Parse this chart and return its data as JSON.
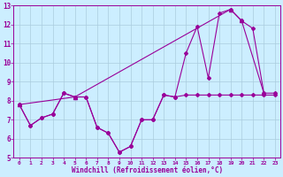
{
  "xlabel": "Windchill (Refroidissement éolien,°C)",
  "bg_color": "#cceeff",
  "grid_color": "#aaccdd",
  "line_color": "#990099",
  "xlim": [
    -0.5,
    23.5
  ],
  "ylim": [
    5,
    13
  ],
  "xticks": [
    0,
    1,
    2,
    3,
    4,
    5,
    6,
    7,
    8,
    9,
    10,
    11,
    12,
    13,
    14,
    15,
    16,
    17,
    18,
    19,
    20,
    21,
    22,
    23
  ],
  "yticks": [
    5,
    6,
    7,
    8,
    9,
    10,
    11,
    12,
    13
  ],
  "series1_x": [
    0,
    1,
    2,
    3,
    4,
    5,
    6,
    7,
    8,
    9,
    10,
    11,
    12,
    13,
    14,
    15,
    16,
    17,
    18,
    19,
    20,
    21,
    22,
    23
  ],
  "series1_y": [
    7.8,
    6.7,
    7.1,
    7.3,
    8.4,
    8.2,
    8.2,
    6.6,
    6.3,
    5.3,
    5.6,
    7.0,
    7.0,
    8.3,
    8.2,
    8.3,
    8.3,
    8.3,
    8.3,
    8.3,
    8.3,
    8.3,
    8.3,
    8.3
  ],
  "series2_x": [
    0,
    1,
    2,
    3,
    4,
    5,
    6,
    7,
    8,
    9,
    10,
    11,
    12,
    13,
    14,
    15,
    16,
    17,
    18,
    19,
    20,
    21,
    22,
    23
  ],
  "series2_y": [
    7.8,
    6.7,
    7.1,
    7.3,
    8.4,
    8.2,
    8.2,
    6.6,
    6.3,
    5.3,
    5.6,
    7.0,
    7.0,
    8.3,
    8.2,
    10.5,
    11.9,
    9.2,
    12.6,
    12.8,
    12.2,
    11.8,
    8.4,
    8.4
  ],
  "series3_x": [
    0,
    5,
    19,
    20,
    22
  ],
  "series3_y": [
    7.8,
    8.2,
    12.8,
    12.2,
    8.4
  ]
}
